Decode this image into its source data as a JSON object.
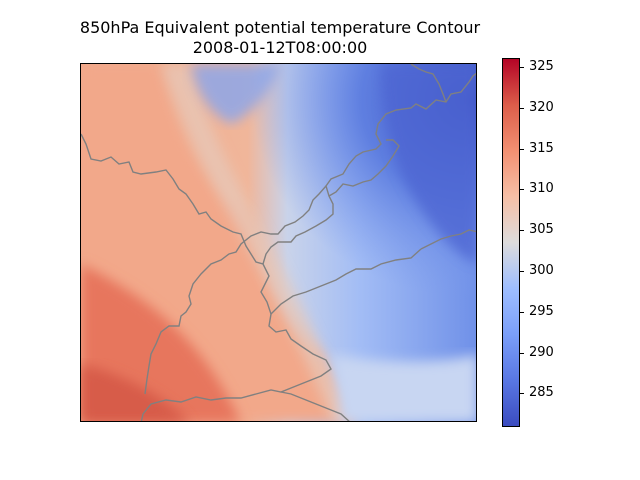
{
  "title_line1": "850hPa Equivalent potential temperature Contour",
  "title_line2": "2008-01-12T08:00:00",
  "colorbar": {
    "colormap": "coolwarm",
    "min": 281,
    "max": 326,
    "ticks": [
      "285",
      "290",
      "295",
      "300",
      "305",
      "310",
      "315",
      "320",
      "325"
    ],
    "colors": {
      "low": "#3b4cc0",
      "mid": "#dddddd",
      "high": "#b40426"
    }
  },
  "map": {
    "border_color": "#808080",
    "warm_region": "west and south-west",
    "cold_region": "east and north-east"
  }
}
